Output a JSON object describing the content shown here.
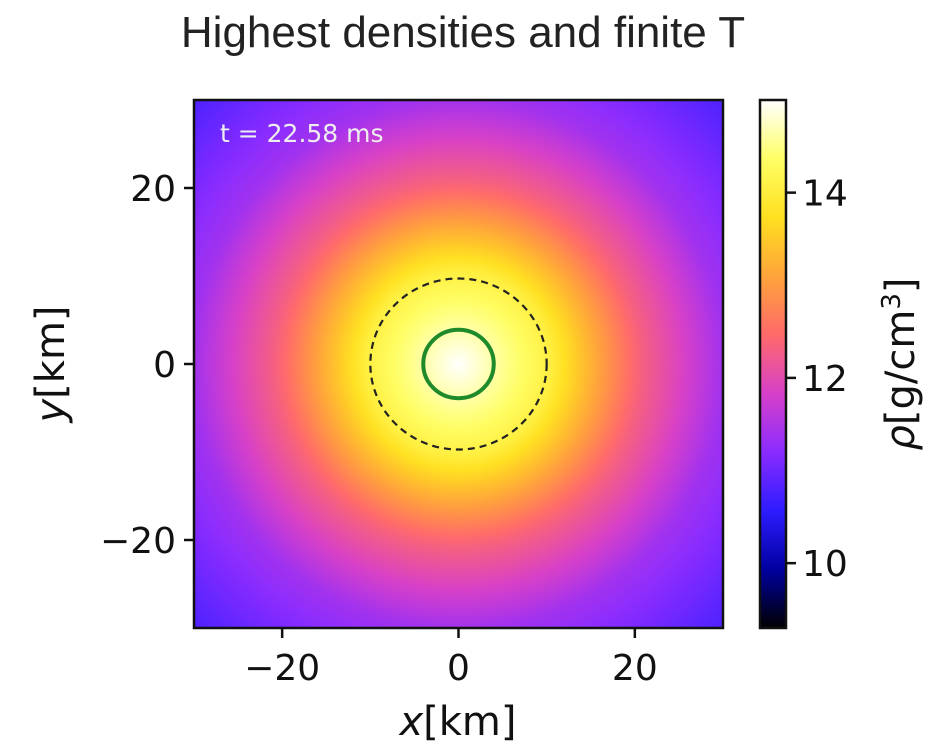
{
  "slide_title": "Highest densities and finite T",
  "chart_data": {
    "type": "heatmap",
    "title": "",
    "annotation": "t = 22.58 ms",
    "xlabel_var": "x",
    "xlabel_unit": "[km]",
    "ylabel_var": "y",
    "ylabel_unit": "[km]",
    "xlim": [
      -30,
      30
    ],
    "ylim": [
      -30,
      30
    ],
    "x_ticks": [
      -20,
      0,
      20
    ],
    "x_tick_labels": [
      "−20",
      "0",
      "20"
    ],
    "y_ticks": [
      20,
      0,
      -20
    ],
    "y_tick_labels": [
      "20",
      "0",
      "−20"
    ],
    "colorbar": {
      "label_var": "ρ",
      "label_unit": "[g/cm",
      "label_exp": "3",
      "label_close": "]",
      "scale": "log10",
      "colormap": "gnuplot2",
      "range": [
        9.3,
        15.0
      ],
      "ticks": [
        14,
        12,
        10
      ],
      "tick_labels": [
        "14",
        "12",
        "10"
      ]
    },
    "field": {
      "shape": "radial",
      "center_km": [
        0,
        0
      ],
      "log10_rho_at_center": 15.0,
      "log10_rho_at_r10km": 14.1,
      "log10_rho_at_r20km": 12.4,
      "log10_rho_at_r30km": 11.4
    },
    "contours": [
      {
        "name": "inner contour",
        "radius_km": 4,
        "color": "#1e8a2a",
        "style": "solid"
      },
      {
        "name": "outer contour",
        "radius_km": 10,
        "color": "#222222",
        "style": "dashed"
      }
    ],
    "colors": {
      "cmap_stops": [
        "#000000",
        "#0000a0",
        "#2d1cff",
        "#8a2cff",
        "#d740c8",
        "#ff6a6a",
        "#ffa43a",
        "#ffe020",
        "#ffff66",
        "#ffffff"
      ]
    }
  }
}
